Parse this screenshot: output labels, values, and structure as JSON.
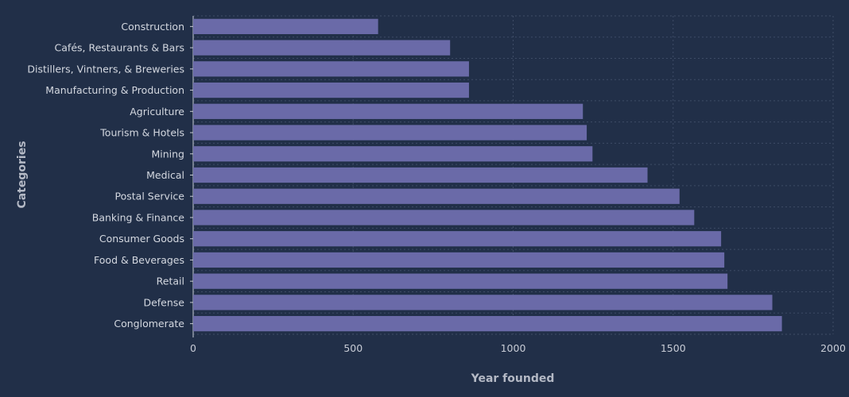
{
  "chart_data": {
    "type": "bar",
    "orientation": "horizontal",
    "xlabel": "Year founded",
    "ylabel": "Categories",
    "xlim": [
      0,
      2000
    ],
    "xticks": [
      0,
      500,
      1000,
      1500,
      2000
    ],
    "grid": true,
    "bar_color": "#6a6aa8",
    "categories": [
      "Construction",
      "Cafés, Restaurants & Bars",
      "Distillers, Vintners, & Breweries",
      "Manufacturing & Production",
      "Agriculture",
      "Tourism & Hotels",
      "Mining",
      "Medical",
      "Postal Service",
      "Banking & Finance",
      "Consumer Goods",
      "Food & Beverages",
      "Retail",
      "Defense",
      "Conglomerate"
    ],
    "values": [
      578,
      803,
      862,
      862,
      1218,
      1230,
      1248,
      1420,
      1520,
      1566,
      1650,
      1660,
      1670,
      1810,
      1840
    ]
  }
}
